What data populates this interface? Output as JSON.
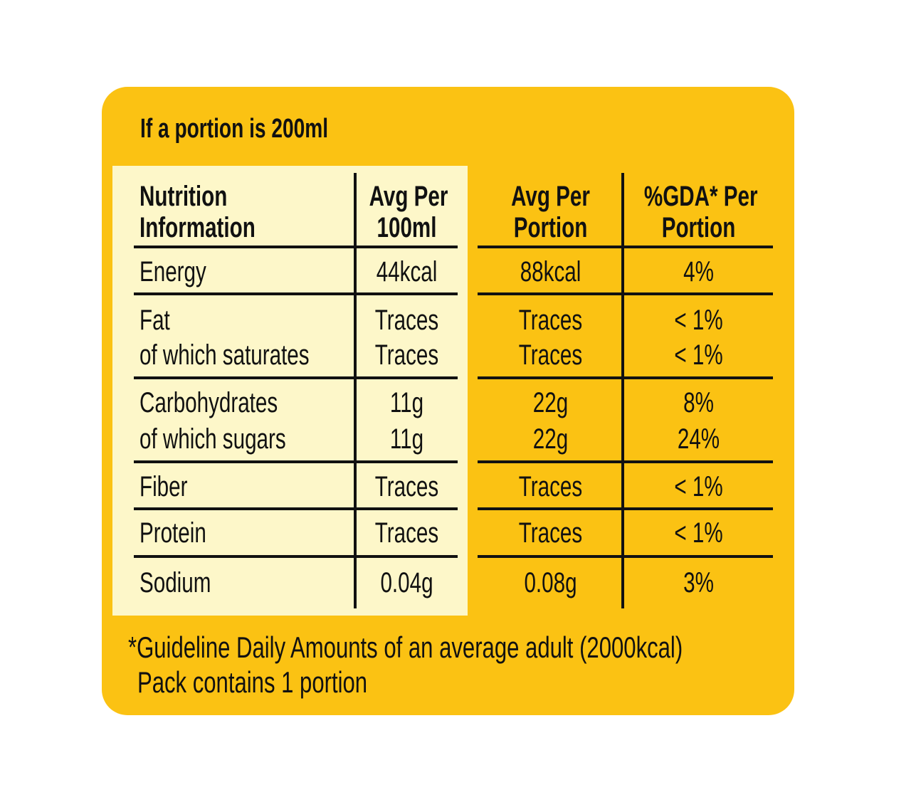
{
  "portion_heading": "If a portion is 200ml",
  "header": {
    "nutrient_line1": "Nutrition",
    "nutrient_line2": "Information",
    "per100_line1": "Avg Per",
    "per100_line2": "100ml",
    "portion_line1": "Avg Per",
    "portion_line2": "Portion",
    "gda_line1": "%GDA* Per",
    "gda_line2": "Portion"
  },
  "rows": [
    {
      "name": "Energy",
      "per100": "44kcal",
      "portion": "88kcal",
      "gda": "4%"
    },
    {
      "name": "Fat",
      "per100": "Traces",
      "portion": "Traces",
      "gda": "< 1%"
    },
    {
      "name": "of which saturates",
      "per100": "Traces",
      "portion": "Traces",
      "gda": "< 1%"
    },
    {
      "name": "Carbohydrates",
      "per100": "11g",
      "portion": "22g",
      "gda": "8%"
    },
    {
      "name": "of which sugars",
      "per100": "11g",
      "portion": "22g",
      "gda": "24%"
    },
    {
      "name": "Fiber",
      "per100": "Traces",
      "portion": "Traces",
      "gda": "< 1%"
    },
    {
      "name": "Protein",
      "per100": "Traces",
      "portion": "Traces",
      "gda": "< 1%"
    },
    {
      "name": "Sodium",
      "per100": "0.04g",
      "portion": "0.08g",
      "gda": "3%"
    }
  ],
  "footnote_line1": "*Guideline Daily Amounts of an average adult (2000kcal)",
  "footnote_line2": "Pack contains 1 portion",
  "colors": {
    "panel": "#FBC213",
    "cream": "#FDF7C9",
    "text": "#111111"
  }
}
